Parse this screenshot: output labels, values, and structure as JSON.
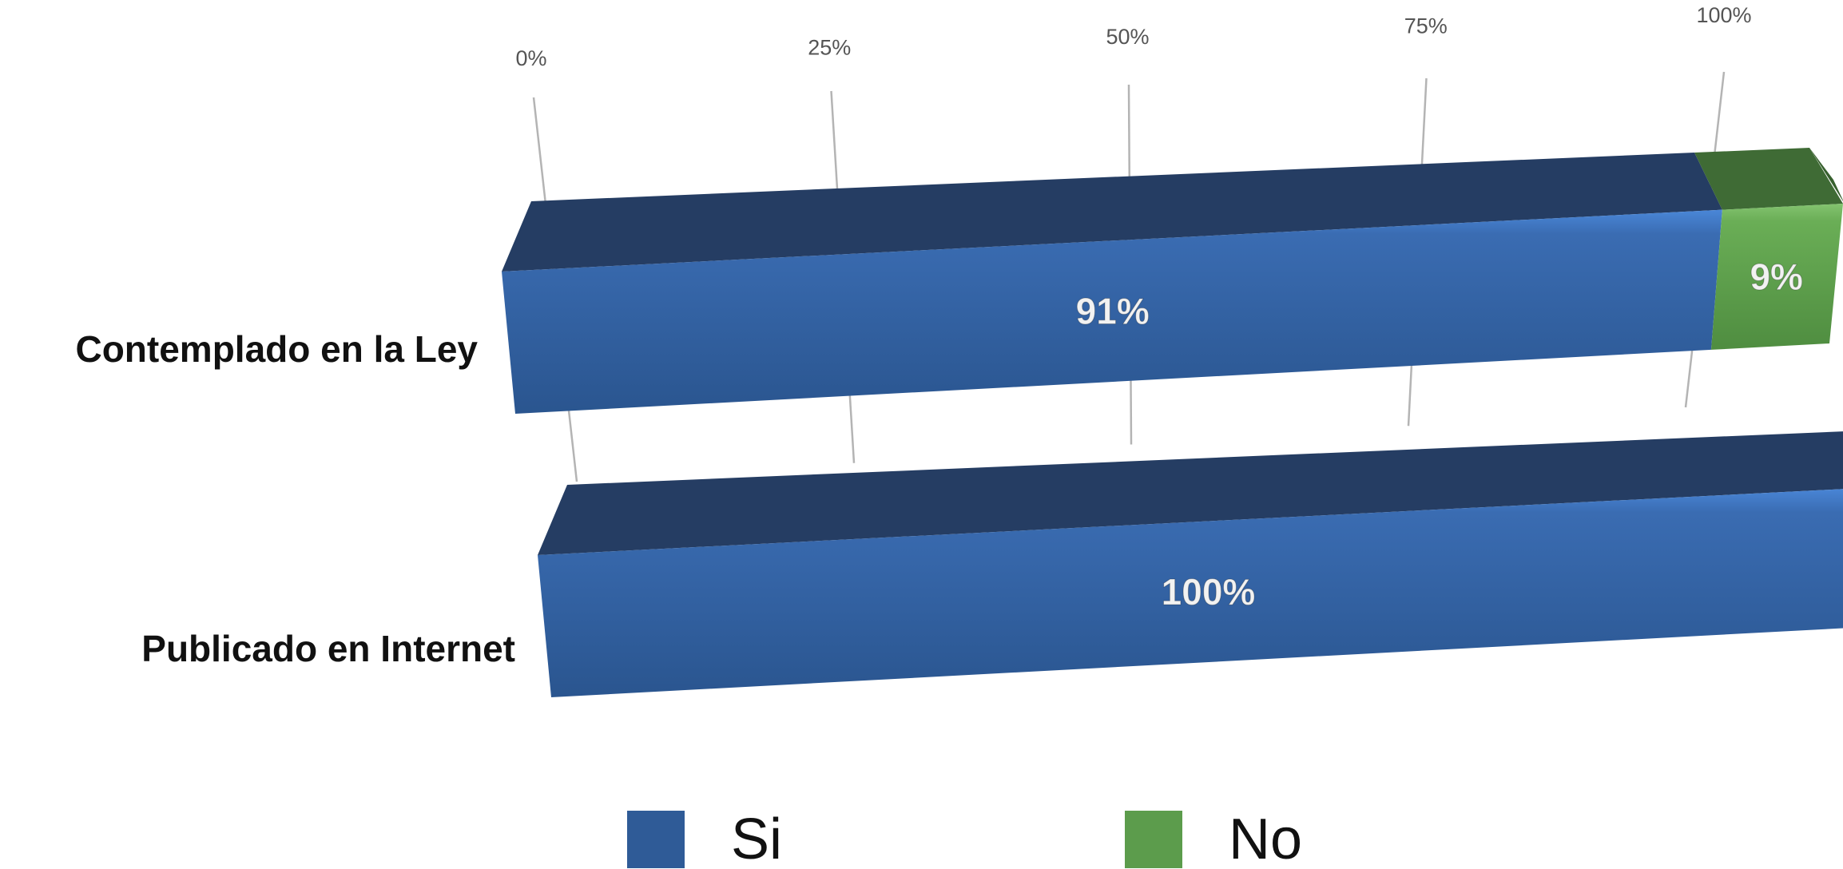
{
  "chart_data": {
    "type": "bar",
    "subtype": "stacked-100-horizontal-3d",
    "title": "",
    "xlabel": "",
    "ylabel": "",
    "categories": [
      "Contemplado en la Ley",
      "Publicado en Internet"
    ],
    "series": [
      {
        "name": "Si",
        "color": "#2f5b97",
        "values": [
          91,
          100
        ],
        "data_labels": [
          "91%",
          "100%"
        ]
      },
      {
        "name": "No",
        "color": "#5c9c4c",
        "values": [
          9,
          0
        ],
        "data_labels": [
          "9%",
          ""
        ]
      }
    ],
    "x_ticks": [
      "0%",
      "25%",
      "50%",
      "75%",
      "100%"
    ],
    "x_tick_values": [
      0,
      25,
      50,
      75,
      100
    ],
    "xlim": [
      0,
      100
    ],
    "grid": true,
    "legend": "bottom"
  }
}
